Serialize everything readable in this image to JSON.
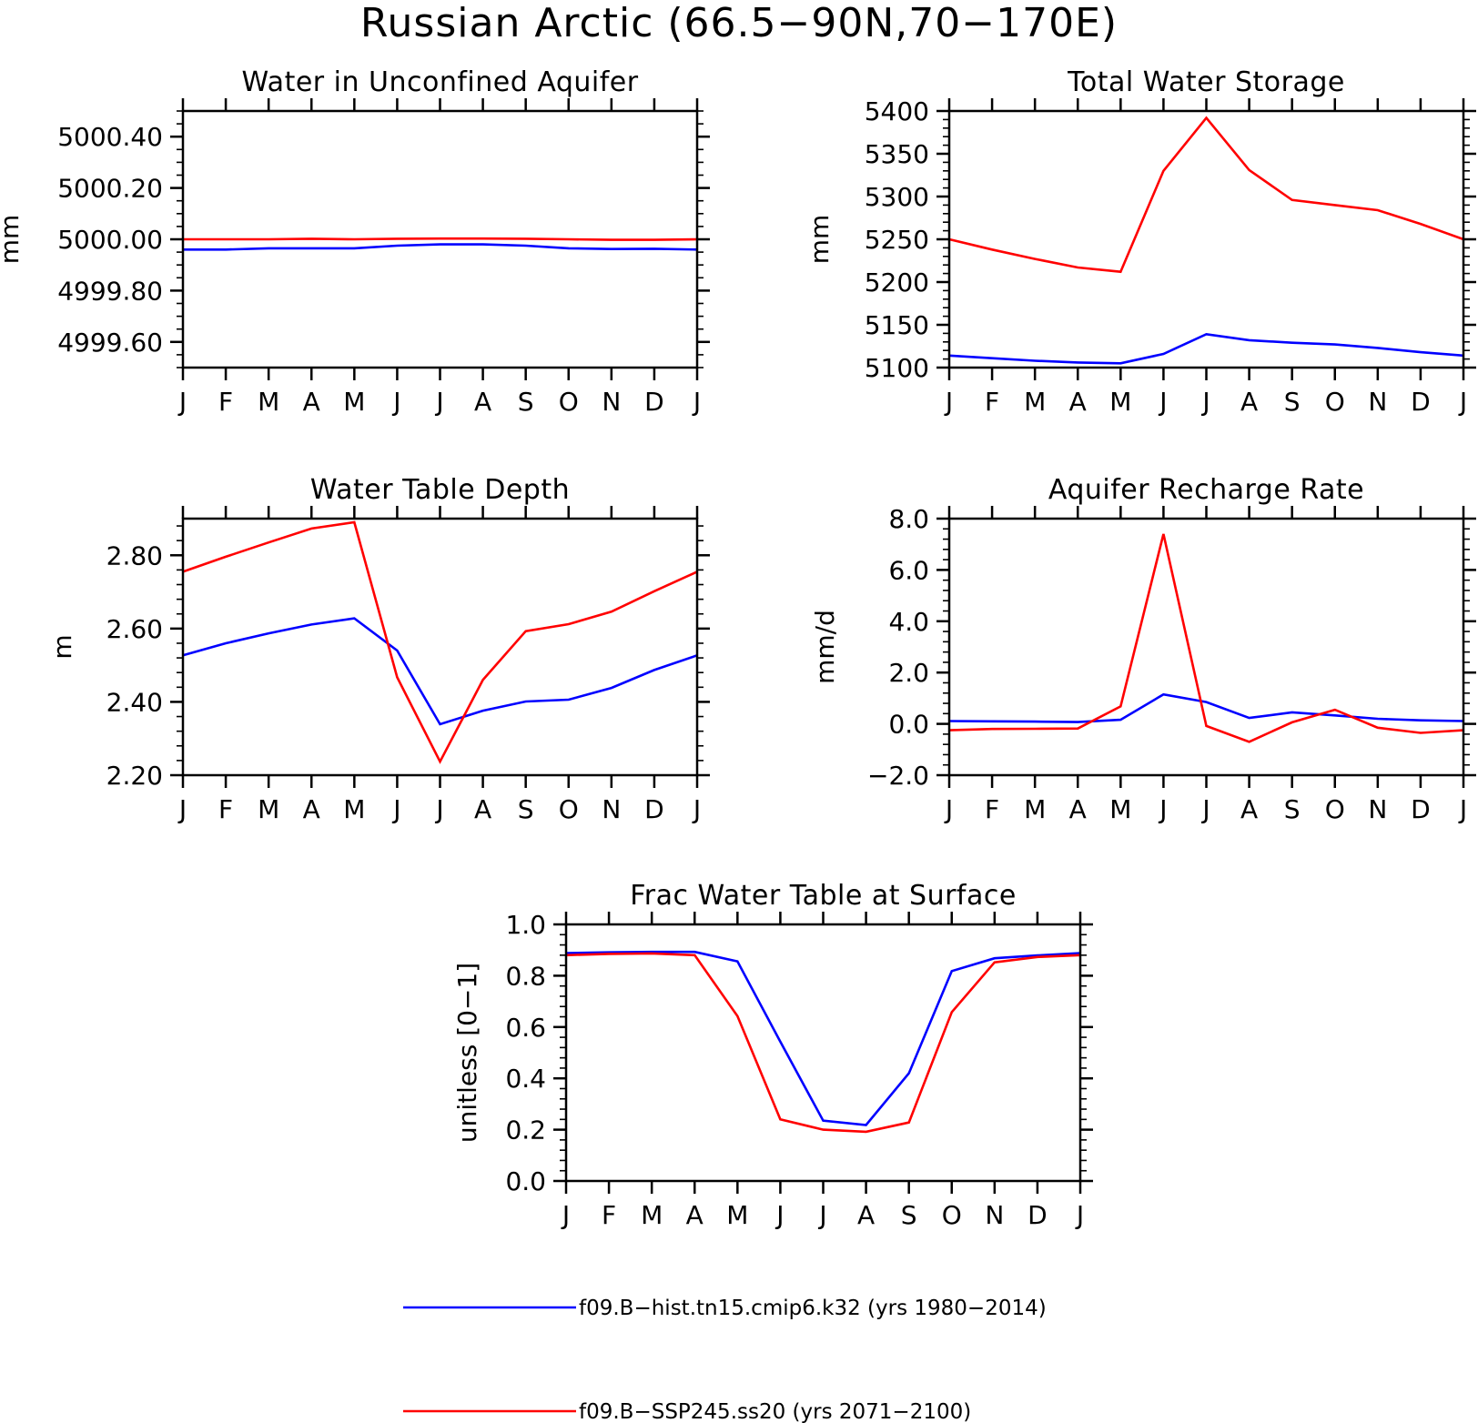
{
  "title": "Russian Arctic (66.5−90N,70−170E)",
  "months": [
    "J",
    "F",
    "M",
    "A",
    "M",
    "J",
    "J",
    "A",
    "S",
    "O",
    "N",
    "D",
    "J"
  ],
  "colors": {
    "hist": "#0000ff",
    "ssp": "#ff0000"
  },
  "legend": [
    {
      "label": "f09.B−hist.tn15.cmip6.k32 (yrs 1980−2014)",
      "color": "#0000ff"
    },
    {
      "label": "f09.B−SSP245.ss20 (yrs 2071−2100)",
      "color": "#ff0000"
    }
  ],
  "chart_data": [
    {
      "type": "line",
      "title": "Water in Unconfined Aquifer",
      "ylabel": "mm",
      "ylim": [
        4999.5,
        5000.5
      ],
      "yticks": [
        4999.6,
        4999.8,
        5000.0,
        5000.2,
        5000.4
      ],
      "ytick_labels": [
        "4999.60",
        "4999.80",
        "5000.00",
        "5000.20",
        "5000.40"
      ],
      "minor_step": 0.05,
      "categories": [
        "J",
        "F",
        "M",
        "A",
        "M",
        "J",
        "J",
        "A",
        "S",
        "O",
        "N",
        "D",
        "J"
      ],
      "series": [
        {
          "name": "f09.B−hist.tn15.cmip6.k32 (yrs 1980−2014)",
          "color": "#0000ff",
          "values": [
            4999.96,
            4999.96,
            4999.965,
            4999.965,
            4999.965,
            4999.975,
            4999.98,
            4999.98,
            4999.975,
            4999.965,
            4999.962,
            4999.963,
            4999.96
          ]
        },
        {
          "name": "f09.B−SSP245.ss20 (yrs 2071−2100)",
          "color": "#ff0000",
          "values": [
            5000.0,
            5000.0,
            5000.0,
            5000.002,
            5000.0,
            5000.002,
            5000.003,
            5000.003,
            5000.002,
            5000.0,
            4999.998,
            4999.998,
            5000.0
          ]
        }
      ]
    },
    {
      "type": "line",
      "title": "Total Water Storage",
      "ylabel": "mm",
      "ylim": [
        5100,
        5400
      ],
      "yticks": [
        5100,
        5150,
        5200,
        5250,
        5300,
        5350,
        5400
      ],
      "ytick_labels": [
        "5100",
        "5150",
        "5200",
        "5250",
        "5300",
        "5350",
        "5400"
      ],
      "minor_step": 10,
      "categories": [
        "J",
        "F",
        "M",
        "A",
        "M",
        "J",
        "J",
        "A",
        "S",
        "O",
        "N",
        "D",
        "J"
      ],
      "series": [
        {
          "name": "f09.B−hist.tn15.cmip6.k32 (yrs 1980−2014)",
          "color": "#0000ff",
          "values": [
            5114,
            5111,
            5108,
            5106,
            5105,
            5116,
            5139,
            5132,
            5129,
            5127,
            5123,
            5118,
            5114
          ]
        },
        {
          "name": "f09.B−SSP245.ss20 (yrs 2071−2100)",
          "color": "#ff0000",
          "values": [
            5250,
            5238,
            5227,
            5217,
            5212,
            5330,
            5392,
            5331,
            5296,
            5290,
            5284,
            5268,
            5250
          ]
        }
      ]
    },
    {
      "type": "line",
      "title": "Water Table Depth",
      "ylabel": "m",
      "ylim": [
        2.2,
        2.9
      ],
      "yticks": [
        2.2,
        2.4,
        2.6,
        2.8
      ],
      "ytick_labels": [
        "2.20",
        "2.40",
        "2.60",
        "2.80"
      ],
      "minor_step": 0.04,
      "categories": [
        "J",
        "F",
        "M",
        "A",
        "M",
        "J",
        "J",
        "A",
        "S",
        "O",
        "N",
        "D",
        "J"
      ],
      "series": [
        {
          "name": "f09.B−hist.tn15.cmip6.k32 (yrs 1980−2014)",
          "color": "#0000ff",
          "values": [
            2.527,
            2.56,
            2.587,
            2.611,
            2.628,
            2.54,
            2.339,
            2.376,
            2.401,
            2.406,
            2.438,
            2.487,
            2.527
          ]
        },
        {
          "name": "f09.B−SSP245.ss20 (yrs 2071−2100)",
          "color": "#ff0000",
          "values": [
            2.755,
            2.796,
            2.835,
            2.873,
            2.89,
            2.467,
            2.237,
            2.46,
            2.593,
            2.612,
            2.646,
            2.702,
            2.755
          ]
        }
      ]
    },
    {
      "type": "line",
      "title": "Aquifer Recharge Rate",
      "ylabel": "mm/d",
      "ylim": [
        -2.0,
        8.0
      ],
      "yticks": [
        -2.0,
        0.0,
        2.0,
        4.0,
        6.0,
        8.0
      ],
      "ytick_labels": [
        "−2.0",
        "0.0",
        "2.0",
        "4.0",
        "6.0",
        "8.0"
      ],
      "minor_step": 0.4,
      "categories": [
        "J",
        "F",
        "M",
        "A",
        "M",
        "J",
        "J",
        "A",
        "S",
        "O",
        "N",
        "D",
        "J"
      ],
      "series": [
        {
          "name": "f09.B−hist.tn15.cmip6.k32 (yrs 1980−2014)",
          "color": "#0000ff",
          "values": [
            0.11,
            0.1,
            0.09,
            0.07,
            0.16,
            1.15,
            0.85,
            0.23,
            0.45,
            0.33,
            0.2,
            0.14,
            0.11
          ]
        },
        {
          "name": "f09.B−SSP245.ss20 (yrs 2071−2100)",
          "color": "#ff0000",
          "values": [
            -0.25,
            -0.2,
            -0.19,
            -0.18,
            0.68,
            7.4,
            -0.08,
            -0.7,
            0.06,
            0.55,
            -0.15,
            -0.35,
            -0.25
          ]
        }
      ]
    },
    {
      "type": "line",
      "title": "Frac Water Table at Surface",
      "ylabel": "unitless [0−1]",
      "ylim": [
        0.0,
        1.0
      ],
      "yticks": [
        0.0,
        0.2,
        0.4,
        0.6,
        0.8,
        1.0
      ],
      "ytick_labels": [
        "0.0",
        "0.2",
        "0.4",
        "0.6",
        "0.8",
        "1.0"
      ],
      "minor_step": 0.04,
      "categories": [
        "J",
        "F",
        "M",
        "A",
        "M",
        "J",
        "J",
        "A",
        "S",
        "O",
        "N",
        "D",
        "J"
      ],
      "series": [
        {
          "name": "f09.B−hist.tn15.cmip6.k32 (yrs 1980−2014)",
          "color": "#0000ff",
          "values": [
            0.888,
            0.891,
            0.893,
            0.893,
            0.856,
            0.543,
            0.235,
            0.218,
            0.42,
            0.818,
            0.868,
            0.879,
            0.888
          ]
        },
        {
          "name": "f09.B−SSP245.ss20 (yrs 2071−2100)",
          "color": "#ff0000",
          "values": [
            0.88,
            0.885,
            0.887,
            0.88,
            0.643,
            0.24,
            0.2,
            0.192,
            0.228,
            0.658,
            0.852,
            0.873,
            0.88
          ]
        }
      ]
    }
  ]
}
